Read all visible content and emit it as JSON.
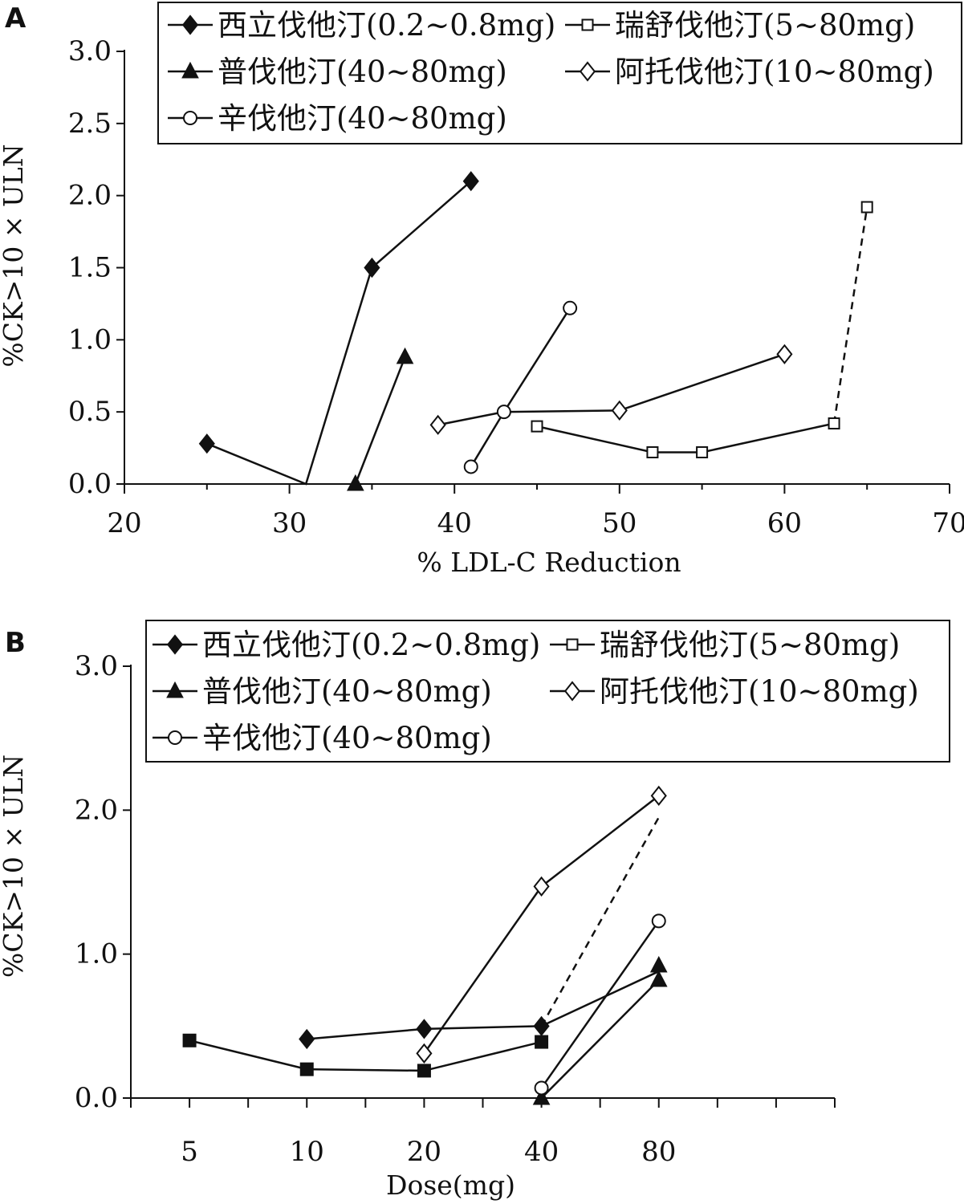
{
  "figure": {
    "colors": {
      "ink": "#111111",
      "background": "#ffffff"
    }
  },
  "chart_data": [
    {
      "panel": "A",
      "type": "line",
      "xlabel": "% LDL-C Reduction",
      "ylabel": "%CK>10 × ULN",
      "xlim": [
        20,
        70
      ],
      "ylim": [
        0,
        3
      ],
      "xticks": [
        20,
        30,
        40,
        50,
        60,
        70
      ],
      "xtick_labels": [
        "20",
        "30",
        "40",
        "50",
        "60",
        "70"
      ],
      "yticks": [
        0,
        0.5,
        1,
        1.5,
        2,
        2.5,
        3
      ],
      "ytick_labels": [
        "0.0",
        "0.5",
        "1.0",
        "1.5",
        "2.0",
        "2.5",
        "3.0"
      ],
      "grid": false,
      "legend_position": "top",
      "series": [
        {
          "name": "西立伐他汀(0.2~0.8mg)",
          "marker": "diamond-filled",
          "points": [
            [
              25,
              0.28
            ],
            [
              31,
              0
            ],
            [
              35,
              1.5
            ],
            [
              41,
              2.1
            ]
          ],
          "marker_points": [
            0,
            2,
            3
          ]
        },
        {
          "name": "瑞舒伐他汀(5~80mg)",
          "marker": "square-open",
          "points": [
            [
              45,
              0.4
            ],
            [
              52,
              0.22
            ],
            [
              55,
              0.22
            ],
            [
              63,
              0.42
            ],
            [
              65,
              1.92
            ]
          ],
          "dashed_last_segment": true
        },
        {
          "name": "普伐他汀(40~80mg)",
          "marker": "triangle-filled",
          "points": [
            [
              34,
              0
            ],
            [
              37,
              0.88
            ]
          ]
        },
        {
          "name": "阿托伐他汀(10~80mg)",
          "marker": "diamond-open",
          "points": [
            [
              39,
              0.41
            ],
            [
              43,
              0.5
            ],
            [
              50,
              0.51
            ],
            [
              60,
              0.9
            ]
          ],
          "marker_points": [
            0,
            2,
            3
          ]
        },
        {
          "name": "辛伐他汀(40~80mg)",
          "marker": "circle-open",
          "points": [
            [
              41,
              0.12
            ],
            [
              43,
              0.5
            ],
            [
              47,
              1.22
            ]
          ]
        }
      ]
    },
    {
      "panel": "B",
      "type": "line",
      "xlabel": "Dose(mg)",
      "ylabel": "%CK>10 × ULN",
      "categories": [
        "5",
        "10",
        "20",
        "40",
        "80"
      ],
      "xlim": [
        0,
        12
      ],
      "x_category_positions": [
        1,
        3,
        5,
        7,
        9
      ],
      "ylim": [
        0,
        3
      ],
      "yticks": [
        0,
        1,
        2,
        3
      ],
      "ytick_labels": [
        "0.0",
        "1.0",
        "2.0",
        "3.0"
      ],
      "grid": false,
      "legend_position": "top",
      "series": [
        {
          "name": "西立伐他汀(0.2~0.8mg)",
          "marker": "diamond-filled",
          "points": [
            [
              3,
              0.41
            ],
            [
              5,
              0.48
            ],
            [
              7,
              0.5
            ],
            [
              9,
              0.88
            ]
          ],
          "marker_points": [
            0,
            1,
            2
          ]
        },
        {
          "name": "瑞舒伐他汀(5~80mg)",
          "marker": "square-open",
          "line_marker": "square-filled",
          "points": [
            [
              1,
              0.4
            ],
            [
              3,
              0.2
            ],
            [
              5,
              0.19
            ],
            [
              7,
              0.39
            ]
          ],
          "dashed_extension": [
            [
              7,
              0.5
            ],
            [
              9,
              1.95
            ]
          ]
        },
        {
          "name": "普伐他汀(40~80mg)",
          "marker": "triangle-filled",
          "points": [
            [
              7,
              0
            ],
            [
              9,
              0.92
            ],
            [
              9,
              0.82
            ]
          ],
          "connect": [
            [
              0,
              2
            ]
          ]
        },
        {
          "name": "阿托伐他汀(10~80mg)",
          "marker": "diamond-open",
          "points": [
            [
              5,
              0.31
            ],
            [
              7,
              1.47
            ],
            [
              9,
              2.1
            ]
          ]
        },
        {
          "name": "辛伐他汀(40~80mg)",
          "marker": "circle-open",
          "points": [
            [
              7,
              0.07
            ],
            [
              9,
              1.23
            ]
          ]
        }
      ]
    }
  ]
}
